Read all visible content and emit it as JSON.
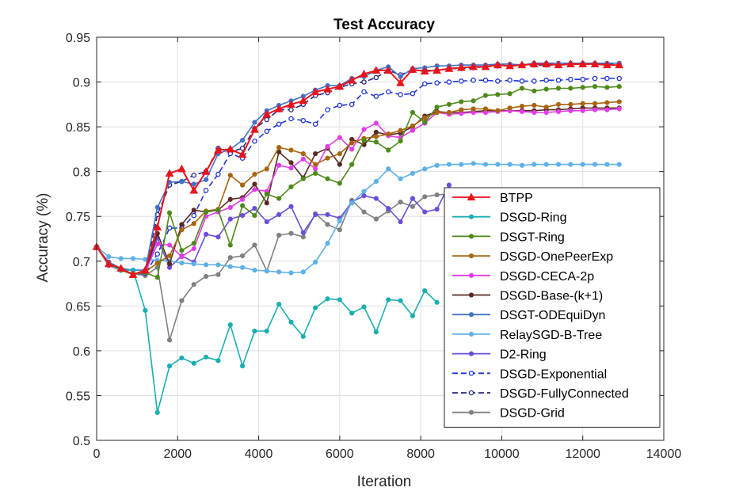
{
  "chart_data": {
    "type": "line",
    "title": "Test Accuracy",
    "xlabel": "Iteration",
    "ylabel": "Accuracy (%)",
    "xlim": [
      0,
      14000
    ],
    "ylim": [
      0.5,
      0.95
    ],
    "xticks": [
      0,
      2000,
      4000,
      6000,
      8000,
      10000,
      12000,
      14000
    ],
    "xtick_labels": [
      "0",
      "2000",
      "4000",
      "6000",
      "8000",
      "10000",
      "12000",
      "14000"
    ],
    "yticks": [
      0.5,
      0.55,
      0.6,
      0.65,
      0.7,
      0.75,
      0.8,
      0.85,
      0.9,
      0.95
    ],
    "ytick_labels": [
      "0.5",
      "0.55",
      "0.6",
      "0.65",
      "0.7",
      "0.75",
      "0.8",
      "0.85",
      "0.9",
      "0.95"
    ],
    "grid": true,
    "legend_position": "right, inside",
    "series": [
      {
        "name": "BTPP",
        "color": "#e8141c",
        "dash": false,
        "marker": "triangle",
        "x": [
          0,
          300,
          600,
          900,
          1200,
          1500,
          1800,
          2100,
          2400,
          2700,
          3000,
          3300,
          3600,
          3900,
          4200,
          4500,
          4800,
          5100,
          5400,
          5700,
          6000,
          6300,
          6600,
          6900,
          7200,
          7500,
          7800,
          8100,
          8400,
          8700,
          9000,
          9300,
          9600,
          9900,
          10200,
          10500,
          10800,
          11100,
          11400,
          11700,
          12000,
          12300,
          12600,
          12900
        ],
        "values": [
          0.716,
          0.697,
          0.692,
          0.685,
          0.69,
          0.738,
          0.798,
          0.803,
          0.779,
          0.8,
          0.824,
          0.825,
          0.819,
          0.847,
          0.864,
          0.87,
          0.875,
          0.879,
          0.889,
          0.892,
          0.895,
          0.902,
          0.909,
          0.913,
          0.913,
          0.899,
          0.914,
          0.912,
          0.913,
          0.915,
          0.916,
          0.917,
          0.917,
          0.919,
          0.918,
          0.919,
          0.92,
          0.92,
          0.919,
          0.92,
          0.92,
          0.92,
          0.919,
          0.919
        ]
      },
      {
        "name": "DSGD-Ring",
        "color": "#1aaeb2",
        "dash": false,
        "marker": "circle",
        "x": [
          0,
          300,
          600,
          900,
          1200,
          1500,
          1800,
          2100,
          2400,
          2700,
          3000,
          3300,
          3600,
          3900,
          4200,
          4500,
          4800,
          5100,
          5400,
          5700,
          6000,
          6300,
          6600,
          6900,
          7200,
          7500,
          7800,
          8100,
          8400
        ],
        "values": [
          0.716,
          0.697,
          0.69,
          0.69,
          0.645,
          0.531,
          0.583,
          0.592,
          0.586,
          0.593,
          0.589,
          0.629,
          0.583,
          0.622,
          0.622,
          0.652,
          0.632,
          0.616,
          0.648,
          0.658,
          0.657,
          0.642,
          0.649,
          0.621,
          0.657,
          0.656,
          0.639,
          0.667,
          0.654
        ]
      },
      {
        "name": "DSGT-Ring",
        "color": "#4e8a1a",
        "dash": false,
        "marker": "circle",
        "x": [
          0,
          300,
          600,
          900,
          1200,
          1500,
          1800,
          2100,
          2400,
          2700,
          3000,
          3300,
          3600,
          3900,
          4200,
          4500,
          4800,
          5100,
          5400,
          5700,
          6000,
          6300,
          6600,
          6900,
          7200,
          7500,
          7800,
          8100,
          8400,
          8700,
          9000,
          9300,
          9600,
          9900,
          10200,
          10500,
          10800,
          11100,
          11400,
          11700,
          12000,
          12300,
          12600,
          12900
        ],
        "values": [
          0.716,
          0.697,
          0.69,
          0.686,
          0.687,
          0.682,
          0.754,
          0.712,
          0.72,
          0.755,
          0.757,
          0.718,
          0.762,
          0.751,
          0.775,
          0.77,
          0.783,
          0.792,
          0.798,
          0.792,
          0.787,
          0.808,
          0.835,
          0.833,
          0.824,
          0.834,
          0.866,
          0.855,
          0.872,
          0.875,
          0.878,
          0.879,
          0.885,
          0.886,
          0.887,
          0.893,
          0.89,
          0.892,
          0.893,
          0.893,
          0.894,
          0.895,
          0.894,
          0.895
        ]
      },
      {
        "name": "DSGD-OnePeerExp",
        "color": "#a8640e",
        "dash": false,
        "marker": "circle",
        "x": [
          0,
          300,
          600,
          900,
          1200,
          1500,
          1800,
          2100,
          2400,
          2700,
          3000,
          3300,
          3600,
          3900,
          4200,
          4500,
          4800,
          5100,
          5400,
          5700,
          6000,
          6300,
          6600,
          6900,
          7200,
          7500,
          7800,
          8100,
          8400,
          8700,
          9000,
          9300,
          9600,
          9900,
          10200,
          10500,
          10800,
          11100,
          11400,
          11700,
          12000,
          12300,
          12600,
          12900
        ],
        "values": [
          0.716,
          0.697,
          0.69,
          0.685,
          0.688,
          0.698,
          0.706,
          0.735,
          0.742,
          0.756,
          0.758,
          0.796,
          0.785,
          0.797,
          0.803,
          0.827,
          0.824,
          0.82,
          0.808,
          0.815,
          0.82,
          0.832,
          0.837,
          0.839,
          0.842,
          0.846,
          0.851,
          0.86,
          0.866,
          0.866,
          0.869,
          0.87,
          0.87,
          0.868,
          0.871,
          0.873,
          0.874,
          0.872,
          0.875,
          0.875,
          0.876,
          0.876,
          0.877,
          0.878
        ]
      },
      {
        "name": "DSGD-CECA-2p",
        "color": "#e23ee6",
        "dash": false,
        "marker": "circle",
        "x": [
          0,
          300,
          600,
          900,
          1200,
          1500,
          1800,
          2100,
          2400,
          2700,
          3000,
          3300,
          3600,
          3900,
          4200,
          4500,
          4800,
          5100,
          5400,
          5700,
          6000,
          6300,
          6600,
          6900,
          7200,
          7500,
          7800,
          8100,
          8400,
          8700,
          9000,
          9300,
          9600,
          9900,
          10200,
          10500,
          10800,
          11100,
          11400,
          11700,
          12000,
          12300,
          12600,
          12900
        ],
        "values": [
          0.716,
          0.697,
          0.69,
          0.686,
          0.688,
          0.719,
          0.718,
          0.705,
          0.714,
          0.75,
          0.755,
          0.76,
          0.769,
          0.78,
          0.778,
          0.807,
          0.804,
          0.814,
          0.803,
          0.828,
          0.838,
          0.825,
          0.847,
          0.854,
          0.84,
          0.838,
          0.846,
          0.854,
          0.866,
          0.864,
          0.865,
          0.866,
          0.866,
          0.867,
          0.868,
          0.867,
          0.866,
          0.866,
          0.867,
          0.868,
          0.868,
          0.869,
          0.869,
          0.87
        ]
      },
      {
        "name": "DSGD-Base-(k+1)",
        "color": "#5a2a22",
        "dash": false,
        "marker": "circle",
        "x": [
          0,
          300,
          600,
          900,
          1200,
          1500,
          1800,
          2100,
          2400,
          2700,
          3000,
          3300,
          3600,
          3900,
          4200,
          4500,
          4800,
          5100,
          5400,
          5700,
          6000,
          6300,
          6600,
          6900,
          7200,
          7500,
          7800,
          8100,
          8400,
          8700,
          9000,
          9300,
          9600,
          9900,
          10200,
          10500,
          10800,
          11100,
          11400,
          11700,
          12000,
          12300,
          12600,
          12900
        ],
        "values": [
          0.716,
          0.697,
          0.69,
          0.686,
          0.687,
          0.731,
          0.697,
          0.741,
          0.757,
          0.755,
          0.757,
          0.769,
          0.771,
          0.786,
          0.765,
          0.822,
          0.81,
          0.793,
          0.82,
          0.826,
          0.808,
          0.836,
          0.83,
          0.844,
          0.841,
          0.843,
          0.85,
          0.862,
          0.867,
          0.866,
          0.866,
          0.867,
          0.868,
          0.868,
          0.868,
          0.868,
          0.868,
          0.869,
          0.869,
          0.87,
          0.871,
          0.871,
          0.871,
          0.871
        ]
      },
      {
        "name": "DSGT-ODEquiDyn",
        "color": "#4472c4",
        "dash": false,
        "marker": "circle",
        "x": [
          0,
          300,
          600,
          900,
          1200,
          1500,
          1800,
          2100,
          2400,
          2700,
          3000,
          3300,
          3600,
          3900,
          4200,
          4500,
          4800,
          5100,
          5400,
          5700,
          6000,
          6300,
          6600,
          6900,
          7200,
          7500,
          7800,
          8100,
          8400,
          8700,
          9000,
          9300,
          9600,
          9900,
          10200,
          10500,
          10800,
          11100,
          11400,
          11700,
          12000,
          12300,
          12600,
          12900
        ],
        "values": [
          0.716,
          0.699,
          0.692,
          0.69,
          0.69,
          0.76,
          0.788,
          0.789,
          0.786,
          0.791,
          0.82,
          0.825,
          0.835,
          0.855,
          0.868,
          0.874,
          0.879,
          0.884,
          0.891,
          0.896,
          0.896,
          0.904,
          0.906,
          0.913,
          0.917,
          0.906,
          0.915,
          0.916,
          0.918,
          0.918,
          0.919,
          0.919,
          0.919,
          0.92,
          0.92,
          0.919,
          0.921,
          0.921,
          0.921,
          0.921,
          0.921,
          0.921,
          0.921,
          0.921
        ]
      },
      {
        "name": "RelaySGD-B-Tree",
        "color": "#5eb1e6",
        "dash": false,
        "marker": "circle",
        "x": [
          0,
          300,
          600,
          900,
          1200,
          1500,
          1800,
          2100,
          2400,
          2700,
          3000,
          3300,
          3600,
          3900,
          4200,
          4500,
          4800,
          5100,
          5400,
          5700,
          6000,
          6300,
          6600,
          6900,
          7200,
          7500,
          7800,
          8100,
          8400,
          8700,
          9000,
          9300,
          9600,
          9900,
          10200,
          10500,
          10800,
          11100,
          11400,
          11700,
          12000,
          12300,
          12600,
          12900
        ],
        "values": [
          0.716,
          0.705,
          0.703,
          0.703,
          0.702,
          0.701,
          0.7,
          0.698,
          0.697,
          0.696,
          0.696,
          0.694,
          0.693,
          0.69,
          0.689,
          0.688,
          0.687,
          0.688,
          0.699,
          0.72,
          0.745,
          0.765,
          0.778,
          0.789,
          0.803,
          0.792,
          0.798,
          0.803,
          0.807,
          0.808,
          0.808,
          0.809,
          0.808,
          0.808,
          0.808,
          0.807,
          0.808,
          0.808,
          0.808,
          0.808,
          0.808,
          0.808,
          0.808,
          0.808
        ]
      },
      {
        "name": "D2-Ring",
        "color": "#6a4ed8",
        "dash": false,
        "marker": "circle",
        "x": [
          0,
          300,
          600,
          900,
          1200,
          1500,
          1800,
          2100,
          2400,
          2700,
          3000,
          3300,
          3600,
          3900,
          4200,
          4500,
          4800,
          5100,
          5400,
          5700,
          6000,
          6300,
          6600,
          6900,
          7200,
          7500,
          7800,
          8100,
          8400,
          8700
        ],
        "values": [
          0.716,
          0.697,
          0.69,
          0.686,
          0.686,
          0.726,
          0.693,
          0.706,
          0.699,
          0.73,
          0.727,
          0.747,
          0.751,
          0.759,
          0.744,
          0.752,
          0.761,
          0.732,
          0.752,
          0.752,
          0.748,
          0.766,
          0.773,
          0.77,
          0.759,
          0.744,
          0.77,
          0.755,
          0.758,
          0.785
        ]
      },
      {
        "name": "DSGD-Exponential",
        "color": "#1f35d6",
        "dash": true,
        "marker": "circle",
        "x": [
          0,
          300,
          600,
          900,
          1200,
          1500,
          1800,
          2100,
          2400,
          2700,
          3000,
          3300,
          3600,
          3900,
          4200,
          4500,
          4800,
          5100,
          5400,
          5700,
          6000,
          6300,
          6600,
          6900,
          7200,
          7500,
          7800,
          8100,
          8400,
          8700,
          9000,
          9300,
          9600,
          9900,
          10200,
          10500,
          10800,
          11100,
          11400,
          11700,
          12000,
          12300,
          12600,
          12900
        ],
        "values": [
          0.716,
          0.697,
          0.69,
          0.686,
          0.686,
          0.708,
          0.737,
          0.737,
          0.751,
          0.779,
          0.797,
          0.82,
          0.815,
          0.834,
          0.845,
          0.853,
          0.859,
          0.857,
          0.853,
          0.869,
          0.874,
          0.875,
          0.889,
          0.884,
          0.889,
          0.886,
          0.887,
          0.898,
          0.899,
          0.9,
          0.901,
          0.902,
          0.902,
          0.901,
          0.902,
          0.901,
          0.901,
          0.902,
          0.902,
          0.903,
          0.903,
          0.904,
          0.904,
          0.904
        ]
      },
      {
        "name": "DSGD-FullyConnected",
        "color": "#262680",
        "dash": true,
        "marker": "circle",
        "x": [
          0,
          300,
          600,
          900,
          1200,
          1500,
          1800,
          2100,
          2400,
          2700,
          3000,
          3300,
          3600,
          3900,
          4200,
          4500,
          4800,
          5100,
          5400,
          5700,
          6000,
          6300,
          6600,
          6900,
          7200,
          7500,
          7800,
          8100,
          8400,
          8700,
          9000,
          9300,
          9600,
          9900,
          10200,
          10500,
          10800,
          11100,
          11400,
          11700,
          12000,
          12300,
          12600,
          12900
        ],
        "values": [
          0.716,
          0.697,
          0.69,
          0.686,
          0.686,
          0.752,
          0.785,
          0.789,
          0.796,
          0.8,
          0.826,
          0.822,
          0.826,
          0.848,
          0.858,
          0.869,
          0.869,
          0.875,
          0.885,
          0.888,
          0.894,
          0.898,
          0.9,
          0.905,
          0.913,
          0.908,
          0.913,
          0.913,
          0.913,
          0.915,
          0.915,
          0.916,
          0.917,
          0.918,
          0.918,
          0.919,
          0.919,
          0.919,
          0.919,
          0.92,
          0.92,
          0.92,
          0.92,
          0.92
        ]
      },
      {
        "name": "DSGD-Grid",
        "color": "#808080",
        "dash": false,
        "marker": "circle",
        "x": [
          0,
          300,
          600,
          900,
          1200,
          1500,
          1800,
          2100,
          2400,
          2700,
          3000,
          3300,
          3600,
          3900,
          4200,
          4500,
          4800,
          5100,
          5400,
          5700,
          6000,
          6300,
          6600,
          6900,
          7200,
          7500,
          7800,
          8100,
          8400,
          8700
        ],
        "values": [
          0.716,
          0.695,
          0.69,
          0.686,
          0.684,
          0.693,
          0.612,
          0.656,
          0.674,
          0.683,
          0.685,
          0.704,
          0.706,
          0.718,
          0.689,
          0.729,
          0.731,
          0.727,
          0.753,
          0.741,
          0.735,
          0.768,
          0.755,
          0.747,
          0.756,
          0.766,
          0.761,
          0.772,
          0.774,
          0.775
        ]
      }
    ]
  }
}
